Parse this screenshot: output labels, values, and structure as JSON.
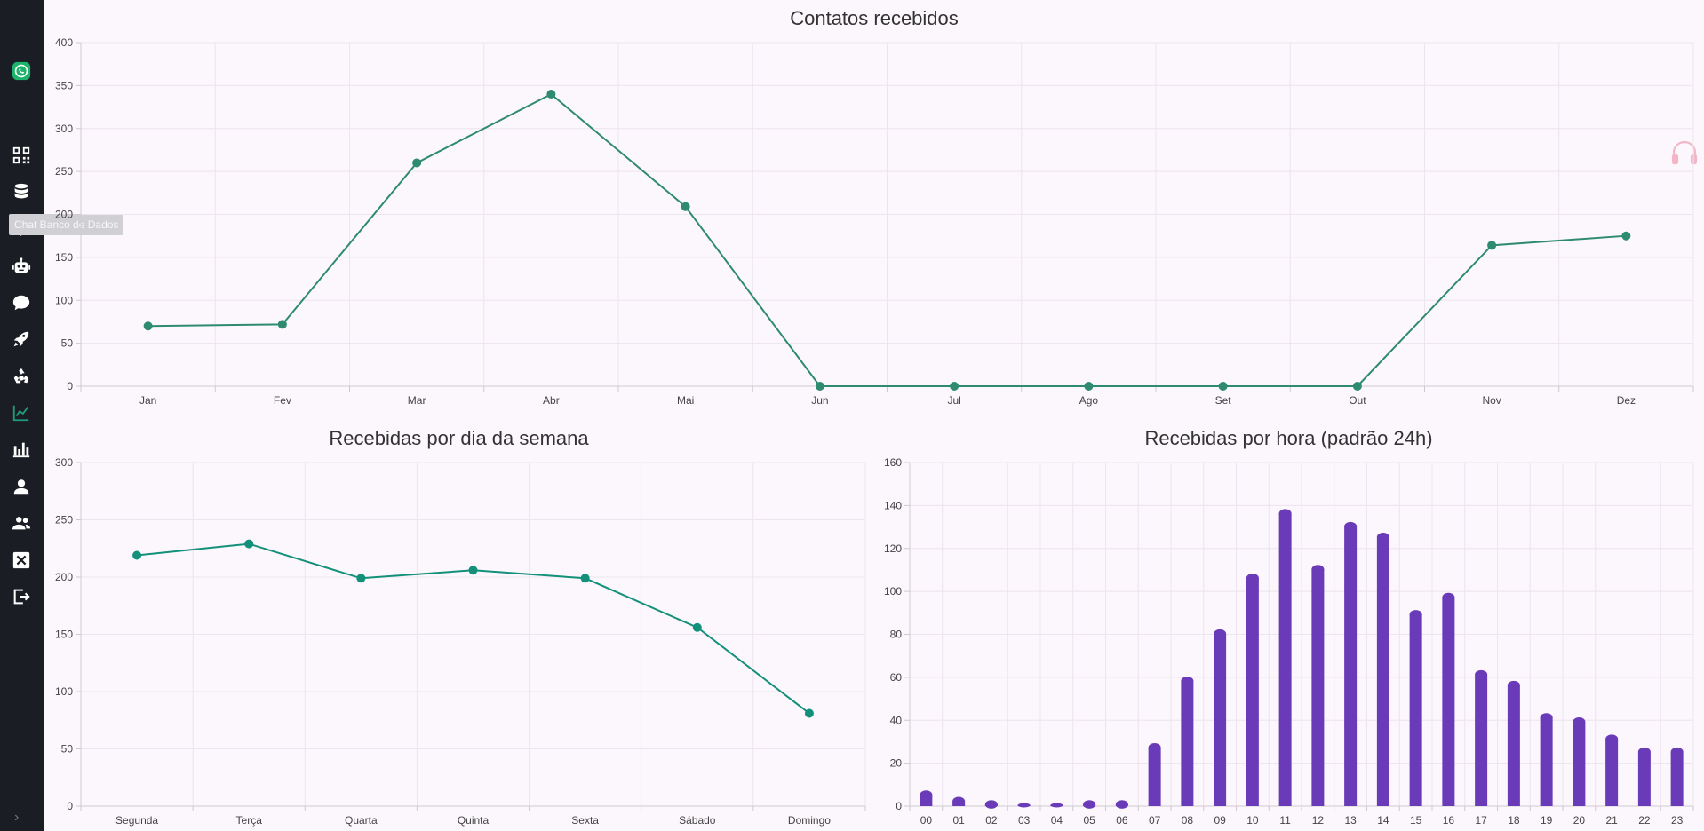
{
  "sidebar": {
    "tooltip": "Chat Banco de Dados",
    "icons": [
      "whatsapp-logo-icon",
      "qr-code-icon",
      "database-icon",
      "filter-icon",
      "robot-icon",
      "chat-bubble-icon",
      "rocket-icon",
      "recycle-icon",
      "line-chart-icon",
      "bar-chart-icon",
      "user-icon",
      "users-icon",
      "close-box-icon",
      "logout-icon"
    ],
    "expand_label": "›",
    "accent": "#1db36b",
    "active_color": "#1f9b7f"
  },
  "chart_data": [
    {
      "type": "line",
      "title": "Contatos recebidos",
      "categories": [
        "Jan",
        "Fev",
        "Mar",
        "Abr",
        "Mai",
        "Jun",
        "Jul",
        "Ago",
        "Set",
        "Out",
        "Nov",
        "Dez"
      ],
      "values": [
        70,
        72,
        260,
        340,
        209,
        0,
        0,
        0,
        0,
        0,
        164,
        175
      ],
      "ylim": [
        0,
        400
      ],
      "yticks": [
        0,
        50,
        100,
        150,
        200,
        250,
        300,
        350,
        400
      ],
      "color": "#2e8b6e",
      "grid": true
    },
    {
      "type": "line",
      "title": "Recebidas por dia da semana",
      "categories": [
        "Segunda",
        "Terça",
        "Quarta",
        "Quinta",
        "Sexta",
        "Sábado",
        "Domingo"
      ],
      "values": [
        219,
        229,
        199,
        206,
        199,
        156,
        81
      ],
      "ylim": [
        0,
        300
      ],
      "yticks": [
        0,
        50,
        100,
        150,
        200,
        250,
        300
      ],
      "color": "#12907a",
      "grid": true
    },
    {
      "type": "bar",
      "title": "Recebidas por hora (padrão 24h)",
      "categories": [
        "00",
        "01",
        "02",
        "03",
        "04",
        "05",
        "06",
        "07",
        "08",
        "09",
        "10",
        "11",
        "12",
        "13",
        "14",
        "15",
        "16",
        "17",
        "18",
        "19",
        "20",
        "21",
        "22",
        "23"
      ],
      "values": [
        7,
        4,
        2,
        1,
        1,
        2,
        2,
        29,
        60,
        82,
        108,
        138,
        112,
        132,
        127,
        91,
        99,
        63,
        58,
        43,
        41,
        33,
        27,
        27
      ],
      "ylim": [
        0,
        160
      ],
      "yticks": [
        0,
        20,
        40,
        60,
        80,
        100,
        120,
        140,
        160
      ],
      "color": "#6a3bb8",
      "grid": true
    }
  ]
}
